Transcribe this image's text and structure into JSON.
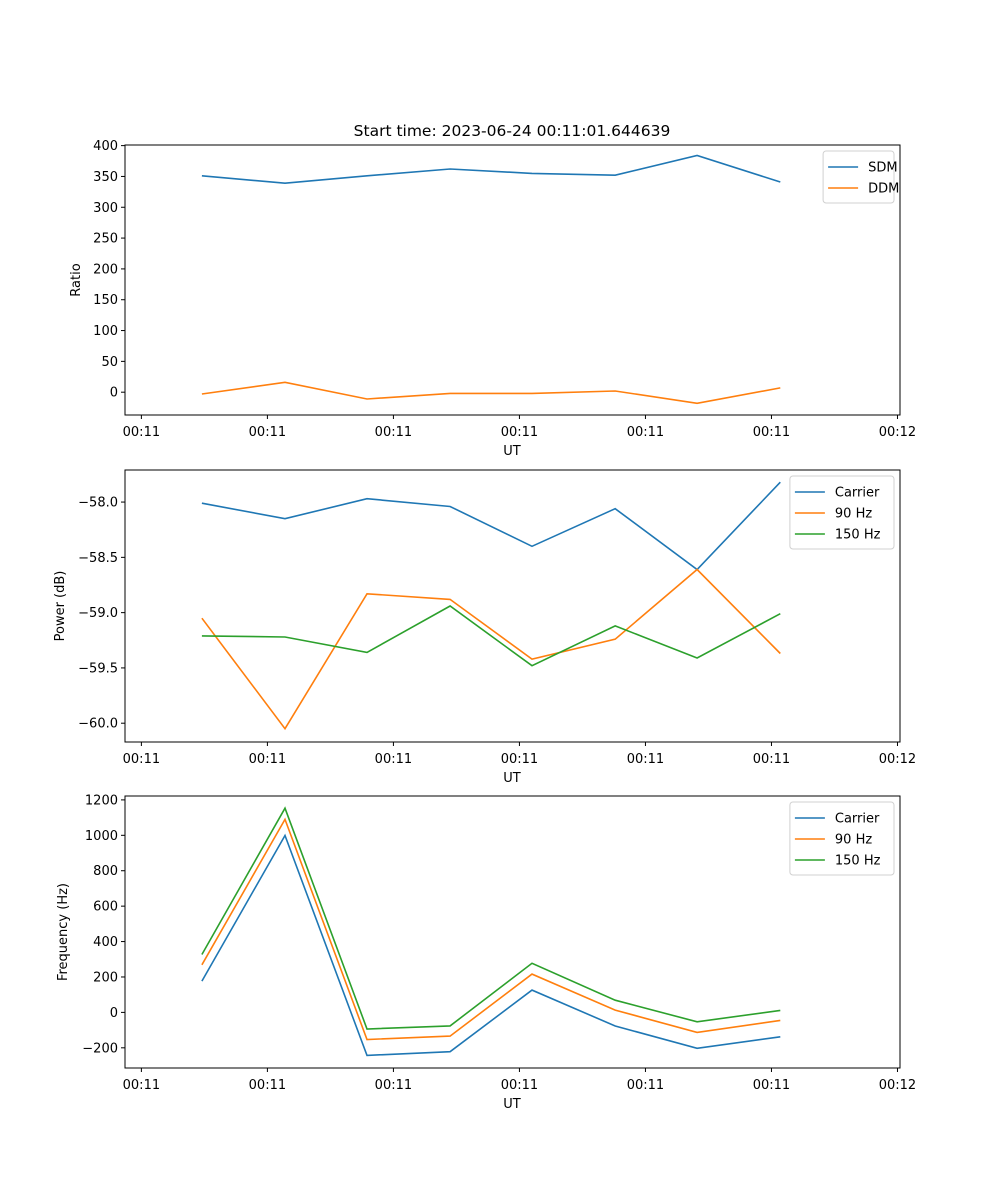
{
  "figure": {
    "title": "Start time: 2023-06-24 00:11:01.644639"
  },
  "chart_data": [
    {
      "type": "line",
      "title": "Start time: 2023-06-24 00:11:01.644639",
      "xlabel": "UT",
      "ylabel": "Ratio",
      "x_units": "seconds after 00:11:00",
      "x": [
        4.8,
        11.4,
        17.9,
        24.5,
        31.0,
        37.6,
        44.1,
        50.7
      ],
      "xlim": [
        -1.3,
        60.2
      ],
      "xticks": [
        0,
        10,
        20,
        30,
        40,
        50,
        60
      ],
      "xtick_labels": [
        "00:11",
        "00:11",
        "00:11",
        "00:11",
        "00:11",
        "00:11",
        "00:12"
      ],
      "ylim": [
        -37,
        401
      ],
      "yticks": [
        0,
        50,
        100,
        150,
        200,
        250,
        300,
        350,
        400
      ],
      "ytick_labels": [
        "0",
        "50",
        "100",
        "150",
        "200",
        "250",
        "300",
        "350",
        "400"
      ],
      "grid": false,
      "legend": "top-right",
      "series": [
        {
          "name": "SDM",
          "color": "#1f77b4",
          "values": [
            351,
            339,
            351,
            362,
            355,
            352,
            384,
            341
          ]
        },
        {
          "name": "DDM",
          "color": "#ff7f0e",
          "values": [
            -3,
            16,
            -11,
            -2,
            -2,
            2,
            -18,
            7
          ]
        }
      ]
    },
    {
      "type": "line",
      "title": "",
      "xlabel": "UT",
      "ylabel": "Power (dB)",
      "x_units": "seconds after 00:11:00",
      "x": [
        4.8,
        11.4,
        17.9,
        24.5,
        31.0,
        37.6,
        44.1,
        50.7
      ],
      "xlim": [
        -1.3,
        60.2
      ],
      "xticks": [
        0,
        10,
        20,
        30,
        40,
        50,
        60
      ],
      "xtick_labels": [
        "00:11",
        "00:11",
        "00:11",
        "00:11",
        "00:11",
        "00:11",
        "00:12"
      ],
      "ylim": [
        -60.17,
        -57.71
      ],
      "yticks": [
        -60.0,
        -59.5,
        -59.0,
        -58.5,
        -58.0
      ],
      "ytick_labels": [
        "−60.0",
        "−59.5",
        "−59.0",
        "−58.5",
        "−58.0"
      ],
      "grid": false,
      "legend": "top-right",
      "series": [
        {
          "name": "Carrier",
          "color": "#1f77b4",
          "values": [
            -58.01,
            -58.15,
            -57.97,
            -58.04,
            -58.4,
            -58.06,
            -58.61,
            -57.82
          ]
        },
        {
          "name": "90 Hz",
          "color": "#ff7f0e",
          "values": [
            -59.05,
            -60.05,
            -58.83,
            -58.88,
            -59.42,
            -59.24,
            -58.61,
            -59.37
          ]
        },
        {
          "name": "150 Hz",
          "color": "#2ca02c",
          "values": [
            -59.21,
            -59.22,
            -59.36,
            -58.94,
            -59.48,
            -59.12,
            -59.41,
            -59.01
          ]
        }
      ]
    },
    {
      "type": "line",
      "title": "",
      "xlabel": "UT",
      "ylabel": "Frequency (Hz)",
      "x_units": "seconds after 00:11:00",
      "x": [
        4.8,
        11.4,
        17.9,
        24.5,
        31.0,
        37.6,
        44.1,
        50.7
      ],
      "xlim": [
        -1.3,
        60.2
      ],
      "xticks": [
        0,
        10,
        20,
        30,
        40,
        50,
        60
      ],
      "xtick_labels": [
        "00:11",
        "00:11",
        "00:11",
        "00:11",
        "00:11",
        "00:11",
        "00:12"
      ],
      "ylim": [
        -314,
        1222
      ],
      "yticks": [
        -200,
        0,
        200,
        400,
        600,
        800,
        1000,
        1200
      ],
      "ytick_labels": [
        "−200",
        "0",
        "200",
        "400",
        "600",
        "800",
        "1000",
        "1200"
      ],
      "grid": false,
      "legend": "top-right",
      "series": [
        {
          "name": "Carrier",
          "color": "#1f77b4",
          "values": [
            177,
            999,
            -243,
            -222,
            126,
            -77,
            -203,
            -138
          ]
        },
        {
          "name": "90 Hz",
          "color": "#ff7f0e",
          "values": [
            269,
            1090,
            -153,
            -134,
            216,
            13,
            -113,
            -45
          ]
        },
        {
          "name": "150 Hz",
          "color": "#2ca02c",
          "values": [
            327,
            1153,
            -94,
            -76,
            277,
            69,
            -53,
            11
          ]
        }
      ]
    }
  ]
}
